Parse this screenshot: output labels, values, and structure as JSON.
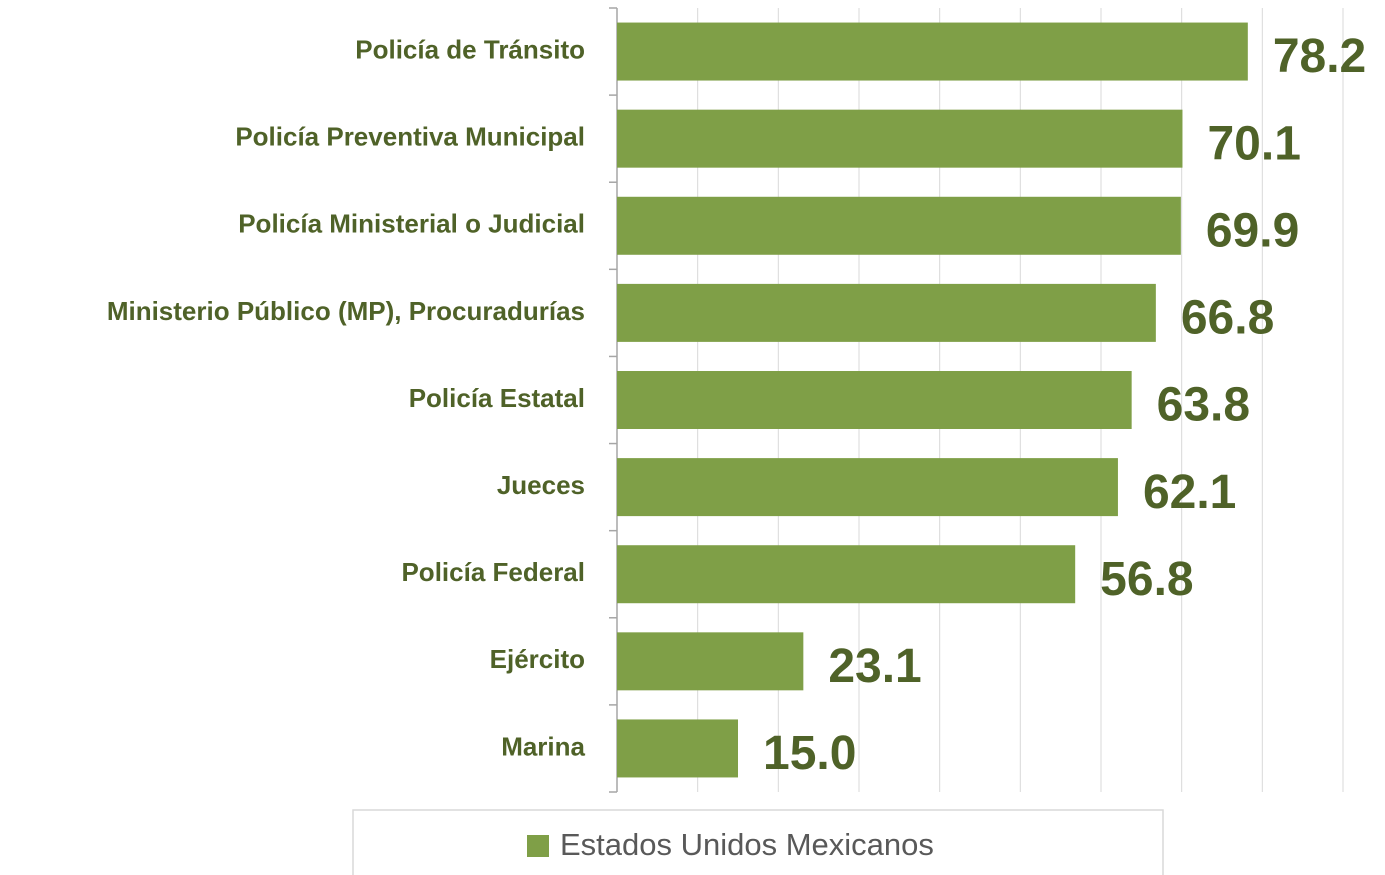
{
  "chart_data": {
    "type": "barh",
    "categories": [
      "Policía de Tránsito",
      "Policía Preventiva Municipal",
      "Policía Ministerial o Judicial",
      "Ministerio Público (MP), Procuradurías",
      "Policía Estatal",
      "Jueces",
      "Policía Federal",
      "Ejército",
      "Marina"
    ],
    "series": [
      {
        "name": "Estados Unidos Mexicanos",
        "color": "#7f9f47",
        "values": [
          78.2,
          70.1,
          69.9,
          66.8,
          63.8,
          62.1,
          56.8,
          23.1,
          15
        ],
        "value_labels": [
          "78.2",
          "70.1",
          "69.9",
          "66.8",
          "63.8",
          "62.1",
          "56.8",
          "23.1",
          "15.0"
        ]
      }
    ],
    "xlim": [
      0,
      90
    ],
    "xticks": [
      0,
      10,
      20,
      30,
      40,
      50,
      60,
      70,
      80,
      90
    ],
    "grid": true,
    "legend": "bottom"
  }
}
